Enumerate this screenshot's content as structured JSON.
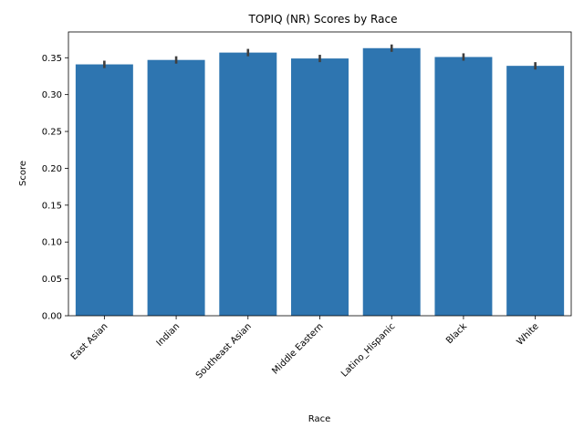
{
  "chart_data": {
    "type": "bar",
    "title": "TOPIQ (NR) Scores by Race",
    "xlabel": "Race",
    "ylabel": "Score",
    "categories": [
      "East Asian",
      "Indian",
      "Southeast Asian",
      "Middle Eastern",
      "Latino_Hispanic",
      "Black",
      "White"
    ],
    "values": [
      0.341,
      0.347,
      0.357,
      0.349,
      0.363,
      0.351,
      0.339
    ],
    "error_low": [
      0.336,
      0.342,
      0.352,
      0.344,
      0.358,
      0.346,
      0.334
    ],
    "error_high": [
      0.346,
      0.352,
      0.362,
      0.354,
      0.368,
      0.356,
      0.344
    ],
    "ylim": [
      0,
      0.385
    ],
    "yticks": [
      "0.00",
      "0.05",
      "0.10",
      "0.15",
      "0.20",
      "0.25",
      "0.30",
      "0.35"
    ],
    "grid": false,
    "colors": {
      "bar": "#2e75b0",
      "errorbar": "#3f3f3f"
    }
  }
}
